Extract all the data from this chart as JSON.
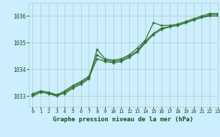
{
  "xlabel": "Graphe pression niveau de la mer (hPa)",
  "bg_color": "#cceeff",
  "grid_color": "#aaccbb",
  "line_color": "#2d6e2d",
  "text_color": "#1a4a1a",
  "xlim": [
    -0.5,
    23
  ],
  "ylim": [
    1032.6,
    1036.5
  ],
  "yticks": [
    1033,
    1034,
    1035,
    1036
  ],
  "xticks": [
    0,
    1,
    2,
    3,
    4,
    5,
    6,
    7,
    8,
    9,
    10,
    11,
    12,
    13,
    14,
    15,
    16,
    17,
    18,
    19,
    20,
    21,
    22,
    23
  ],
  "hours": [
    0,
    1,
    2,
    3,
    4,
    5,
    6,
    7,
    8,
    9,
    10,
    11,
    12,
    13,
    14,
    15,
    16,
    17,
    18,
    19,
    20,
    21,
    22,
    23
  ],
  "line1": [
    1033.0,
    1033.15,
    1033.1,
    1033.05,
    1033.2,
    1033.4,
    1033.55,
    1033.75,
    1034.55,
    1034.35,
    1034.3,
    1034.35,
    1034.5,
    1034.7,
    1035.05,
    1035.35,
    1035.55,
    1035.6,
    1035.65,
    1035.75,
    1035.85,
    1035.95,
    1036.05,
    1036.05
  ],
  "line2": [
    1033.05,
    1033.15,
    1033.1,
    1033.0,
    1033.15,
    1033.35,
    1033.5,
    1033.7,
    1034.4,
    1034.3,
    1034.25,
    1034.3,
    1034.45,
    1034.65,
    1035.0,
    1035.3,
    1035.5,
    1035.6,
    1035.65,
    1035.75,
    1035.85,
    1035.95,
    1036.0,
    1036.0
  ],
  "line3": [
    1033.1,
    1033.2,
    1033.15,
    1033.05,
    1033.1,
    1033.3,
    1033.45,
    1033.65,
    1034.75,
    1034.4,
    1034.35,
    1034.4,
    1034.55,
    1034.8,
    1035.1,
    1035.75,
    1035.65,
    1035.65,
    1035.7,
    1035.8,
    1035.9,
    1036.0,
    1036.1,
    1036.1
  ]
}
